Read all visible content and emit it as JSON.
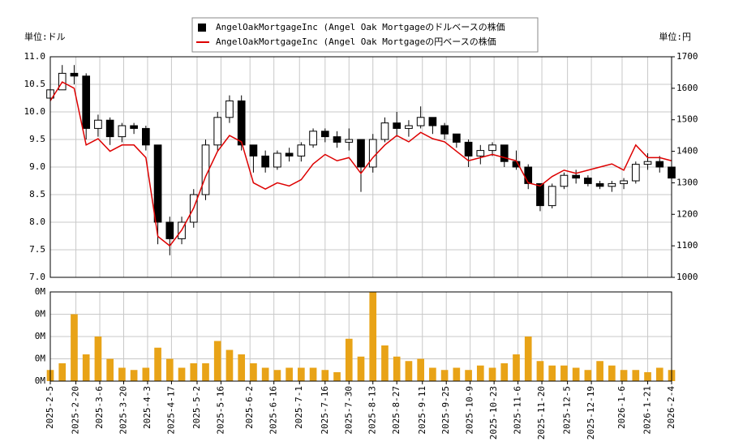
{
  "chart_data": [
    {
      "type": "candlestick",
      "y_label": "単位:ドル",
      "y2_label": "単位:円",
      "x": [
        "2025-2-5",
        "2025-2-12",
        "2025-2-19",
        "2025-2-26",
        "2025-3-5",
        "2025-3-12",
        "2025-3-19",
        "2025-3-26",
        "2025-4-2",
        "2025-4-9",
        "2025-4-16",
        "2025-4-23",
        "2025-4-30",
        "2025-5-7",
        "2025-5-14",
        "2025-5-21",
        "2025-5-28",
        "2025-6-4",
        "2025-6-11",
        "2025-6-18",
        "2025-6-25",
        "2025-7-2",
        "2025-7-9",
        "2025-7-16",
        "2025-7-23",
        "2025-7-30",
        "2025-8-6",
        "2025-8-13",
        "2025-8-20",
        "2025-8-27",
        "2025-9-3",
        "2025-9-10",
        "2025-9-17",
        "2025-9-24",
        "2025-10-1",
        "2025-10-8",
        "2025-10-15",
        "2025-10-22",
        "2025-10-29",
        "2025-11-5",
        "2025-11-12",
        "2025-11-19",
        "2025-11-26",
        "2025-12-3",
        "2025-12-10",
        "2025-12-17",
        "2025-12-24",
        "2025-12-31",
        "2026-1-7",
        "2026-1-14",
        "2026-1-21",
        "2026-1-28",
        "2026-2-4"
      ],
      "series": [
        {
          "name": "AngelOakMortgageInc (Angel Oak Mortgageのドルベースの株価",
          "color": "#000000",
          "open": [
            10.25,
            10.4,
            10.7,
            10.65,
            9.7,
            9.85,
            9.55,
            9.75,
            9.7,
            9.4,
            8.0,
            7.7,
            8.0,
            8.5,
            9.4,
            9.9,
            10.2,
            9.4,
            9.2,
            9.0,
            9.25,
            9.2,
            9.4,
            9.65,
            9.55,
            9.45,
            9.5,
            9.0,
            9.5,
            9.8,
            9.7,
            9.75,
            9.9,
            9.75,
            9.6,
            9.45,
            9.2,
            9.3,
            9.4,
            9.1,
            9.0,
            8.7,
            8.3,
            8.65,
            8.85,
            8.8,
            8.7,
            8.65,
            8.7,
            8.75,
            9.05,
            9.1,
            9.0
          ],
          "high": [
            10.45,
            10.85,
            10.85,
            10.7,
            9.95,
            9.9,
            9.8,
            9.8,
            9.75,
            9.4,
            8.1,
            8.1,
            8.6,
            9.5,
            10.0,
            10.3,
            10.3,
            9.4,
            9.3,
            9.3,
            9.35,
            9.45,
            9.7,
            9.7,
            9.65,
            9.7,
            9.5,
            9.6,
            9.9,
            10.0,
            9.85,
            10.1,
            9.9,
            9.8,
            9.6,
            9.5,
            9.4,
            9.45,
            9.4,
            9.3,
            9.05,
            8.7,
            8.7,
            8.9,
            8.95,
            8.85,
            8.75,
            8.75,
            8.8,
            9.1,
            9.25,
            9.2,
            9.05
          ],
          "low": [
            10.2,
            10.4,
            10.5,
            9.5,
            9.55,
            9.4,
            9.45,
            9.6,
            9.3,
            7.6,
            7.4,
            7.6,
            7.9,
            8.4,
            9.3,
            9.8,
            9.3,
            8.9,
            8.9,
            8.95,
            9.1,
            9.1,
            9.35,
            9.45,
            9.35,
            9.3,
            8.55,
            8.9,
            9.45,
            9.55,
            9.55,
            9.7,
            9.6,
            9.5,
            9.35,
            9.0,
            9.05,
            9.2,
            9.0,
            8.95,
            8.6,
            8.2,
            8.25,
            8.6,
            8.7,
            8.65,
            8.6,
            8.55,
            8.6,
            8.7,
            8.95,
            8.9,
            8.75
          ],
          "close": [
            10.4,
            10.7,
            10.65,
            9.7,
            9.85,
            9.55,
            9.75,
            9.7,
            9.4,
            8.0,
            7.7,
            8.0,
            8.5,
            9.4,
            9.9,
            10.2,
            9.4,
            9.2,
            9.0,
            9.25,
            9.2,
            9.4,
            9.65,
            9.55,
            9.45,
            9.5,
            9.0,
            9.5,
            9.8,
            9.7,
            9.75,
            9.9,
            9.75,
            9.6,
            9.45,
            9.2,
            9.3,
            9.4,
            9.1,
            9.0,
            8.7,
            8.3,
            8.65,
            8.85,
            8.8,
            8.7,
            8.65,
            8.7,
            8.75,
            9.05,
            9.1,
            9.0,
            8.8
          ]
        },
        {
          "name": "AngelOakMortgageInc (Angel Oak Mortgageの円ベースの株価",
          "color": "#dd0000",
          "axis": "y2",
          "values": [
            1560,
            1620,
            1600,
            1420,
            1440,
            1400,
            1420,
            1420,
            1380,
            1130,
            1100,
            1150,
            1220,
            1320,
            1400,
            1450,
            1430,
            1300,
            1280,
            1300,
            1290,
            1310,
            1360,
            1390,
            1370,
            1380,
            1330,
            1380,
            1420,
            1450,
            1430,
            1460,
            1440,
            1430,
            1400,
            1370,
            1380,
            1390,
            1380,
            1370,
            1300,
            1290,
            1320,
            1340,
            1330,
            1340,
            1350,
            1360,
            1340,
            1420,
            1380,
            1380,
            1370
          ]
        }
      ],
      "ylim": [
        7,
        11
      ],
      "yticks": [
        {
          "value": 7,
          "label": "7.0"
        },
        7.5,
        {
          "value": 8,
          "label": "8.0"
        },
        8.5,
        {
          "value": 9,
          "label": "9.0"
        },
        9.5,
        {
          "value": 10,
          "label": "10.0"
        },
        10.5,
        {
          "value": 11,
          "label": "11.0"
        }
      ],
      "y2lim": [
        1000,
        1700
      ],
      "y2ticks": [
        1000,
        1100,
        1200,
        1300,
        1400,
        1500,
        1600,
        1700
      ],
      "grid": true
    },
    {
      "type": "bar",
      "color": "#e8a317",
      "xlim": [
        "2025-2-5",
        "2026-2-4"
      ],
      "xticks": [
        "2025-2-5",
        "2025-2-20",
        "2025-3-6",
        "2025-3-20",
        "2025-4-3",
        "2025-4-17",
        "2025-5-2",
        "2025-5-16",
        "2025-6-2",
        "2025-6-16",
        "2025-7-1",
        "2025-7-16",
        "2025-7-30",
        "2025-8-13",
        "2025-8-27",
        "2025-9-11",
        "2025-9-25",
        "2025-10-9",
        "2025-10-23",
        "2025-11-6",
        "2025-11-20",
        "2025-12-5",
        "2025-12-19",
        "2026-1-6",
        "2026-1-21",
        "2026-2-4"
      ],
      "values": [
        50000,
        80000,
        300000,
        120000,
        200000,
        100000,
        60000,
        50000,
        60000,
        150000,
        100000,
        60000,
        80000,
        80000,
        180000,
        140000,
        120000,
        80000,
        60000,
        50000,
        60000,
        60000,
        60000,
        50000,
        40000,
        190000,
        110000,
        400000,
        160000,
        110000,
        90000,
        100000,
        60000,
        50000,
        60000,
        50000,
        70000,
        60000,
        80000,
        120000,
        200000,
        90000,
        70000,
        70000,
        60000,
        50000,
        90000,
        70000,
        50000,
        50000,
        40000,
        60000,
        50000
      ],
      "ylim": [
        0,
        400000
      ],
      "yticks": [
        {
          "value": 0,
          "label": "0M"
        },
        {
          "value": 100000,
          "label": "0M"
        },
        {
          "value": 200000,
          "label": "0M"
        },
        {
          "value": 300000,
          "label": "0M"
        },
        {
          "value": 400000,
          "label": "0M"
        }
      ],
      "grid": true
    }
  ]
}
